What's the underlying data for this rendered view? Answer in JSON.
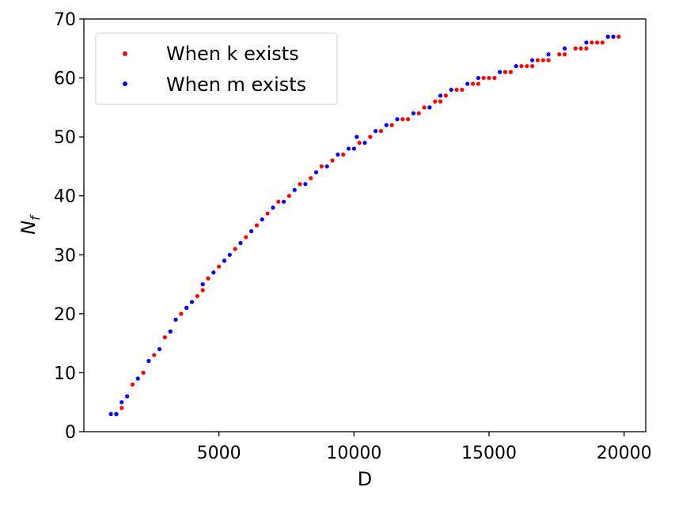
{
  "chart_data": {
    "type": "scatter",
    "title": "",
    "xlabel": "D",
    "ylabel_main": "N",
    "ylabel_sub": "f",
    "xlim": [
      0,
      20800
    ],
    "ylim": [
      0,
      70
    ],
    "x_ticks": [
      5000,
      10000,
      15000,
      20000
    ],
    "y_ticks": [
      0,
      10,
      20,
      30,
      40,
      50,
      60,
      70
    ],
    "legend_position": "top-left",
    "grid": false,
    "series": [
      {
        "name": "When k exists",
        "color": "#ff0000",
        "points": [
          [
            1200,
            3
          ],
          [
            1400,
            4
          ],
          [
            1800,
            8
          ],
          [
            2200,
            10
          ],
          [
            2600,
            13
          ],
          [
            3000,
            16
          ],
          [
            3200,
            17
          ],
          [
            3600,
            20
          ],
          [
            3800,
            21
          ],
          [
            4200,
            23
          ],
          [
            4400,
            24
          ],
          [
            4600,
            26
          ],
          [
            5000,
            28
          ],
          [
            5200,
            29
          ],
          [
            5600,
            31
          ],
          [
            6000,
            33
          ],
          [
            6400,
            35
          ],
          [
            6800,
            37
          ],
          [
            7200,
            39
          ],
          [
            7600,
            40
          ],
          [
            8000,
            42
          ],
          [
            8400,
            43
          ],
          [
            8800,
            45
          ],
          [
            9200,
            46
          ],
          [
            9600,
            47
          ],
          [
            10200,
            49
          ],
          [
            10600,
            50
          ],
          [
            11000,
            51
          ],
          [
            11400,
            52
          ],
          [
            11800,
            53
          ],
          [
            12000,
            53
          ],
          [
            12400,
            54
          ],
          [
            12600,
            55
          ],
          [
            12800,
            55
          ],
          [
            13000,
            56
          ],
          [
            13200,
            56
          ],
          [
            13400,
            57
          ],
          [
            13800,
            58
          ],
          [
            14000,
            58
          ],
          [
            14400,
            59
          ],
          [
            14600,
            59
          ],
          [
            14800,
            60
          ],
          [
            15000,
            60
          ],
          [
            15200,
            60
          ],
          [
            15600,
            61
          ],
          [
            15800,
            61
          ],
          [
            16200,
            62
          ],
          [
            16400,
            62
          ],
          [
            16600,
            62
          ],
          [
            16800,
            63
          ],
          [
            17000,
            63
          ],
          [
            17200,
            63
          ],
          [
            17600,
            64
          ],
          [
            17800,
            64
          ],
          [
            18200,
            65
          ],
          [
            18400,
            65
          ],
          [
            18600,
            65
          ],
          [
            18800,
            66
          ],
          [
            19000,
            66
          ],
          [
            19200,
            66
          ],
          [
            19600,
            67
          ],
          [
            19800,
            67
          ]
        ]
      },
      {
        "name": "When m exists",
        "color": "#0000ff",
        "points": [
          [
            1000,
            3
          ],
          [
            1200,
            3
          ],
          [
            1400,
            5
          ],
          [
            1600,
            6
          ],
          [
            2000,
            9
          ],
          [
            2400,
            12
          ],
          [
            2800,
            14
          ],
          [
            3200,
            17
          ],
          [
            3400,
            19
          ],
          [
            3800,
            21
          ],
          [
            4000,
            22
          ],
          [
            4400,
            25
          ],
          [
            4800,
            27
          ],
          [
            5200,
            29
          ],
          [
            5400,
            30
          ],
          [
            5800,
            32
          ],
          [
            6200,
            34
          ],
          [
            6600,
            36
          ],
          [
            7000,
            38
          ],
          [
            7400,
            39
          ],
          [
            7800,
            41
          ],
          [
            8200,
            42
          ],
          [
            8600,
            44
          ],
          [
            9000,
            45
          ],
          [
            9400,
            47
          ],
          [
            9800,
            48
          ],
          [
            10000,
            48
          ],
          [
            10100,
            50
          ],
          [
            10400,
            49
          ],
          [
            10800,
            51
          ],
          [
            11200,
            52
          ],
          [
            11600,
            53
          ],
          [
            12200,
            54
          ],
          [
            12800,
            55
          ],
          [
            13200,
            57
          ],
          [
            13600,
            58
          ],
          [
            14200,
            59
          ],
          [
            14600,
            60
          ],
          [
            15400,
            61
          ],
          [
            16000,
            62
          ],
          [
            16600,
            63
          ],
          [
            17200,
            64
          ],
          [
            17800,
            65
          ],
          [
            18600,
            66
          ],
          [
            19400,
            67
          ],
          [
            19600,
            67
          ]
        ]
      }
    ]
  }
}
